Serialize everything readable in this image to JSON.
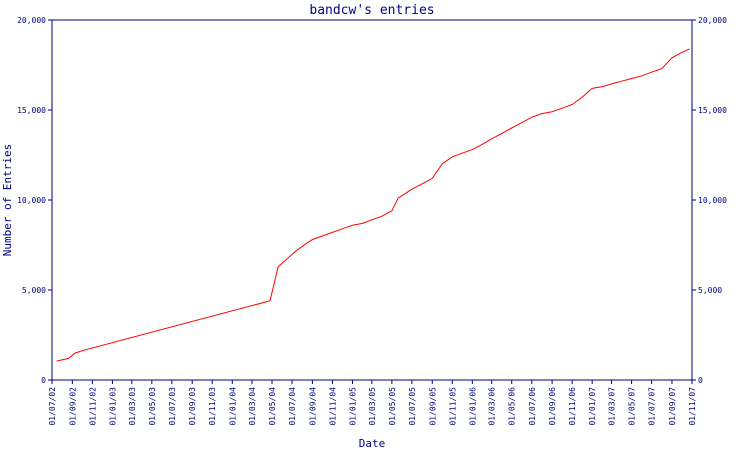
{
  "chart_data": {
    "type": "line",
    "title": "bandcw's entries",
    "xlabel": "Date",
    "ylabel": "Number of Entries",
    "ylim": [
      0,
      20000
    ],
    "yticks": [
      0,
      5000,
      10000,
      15000,
      20000
    ],
    "ytick_labels": [
      "0",
      "5,000",
      "10,000",
      "15,000",
      "20,000"
    ],
    "xlim": [
      "2002-07-01",
      "2007-11-01"
    ],
    "xticks": [
      "2002-07-01",
      "2002-09-01",
      "2002-11-01",
      "2003-01-01",
      "2003-03-01",
      "2003-05-01",
      "2003-07-01",
      "2003-09-01",
      "2003-11-01",
      "2004-01-01",
      "2004-03-01",
      "2004-05-01",
      "2004-07-01",
      "2004-09-01",
      "2004-11-01",
      "2005-01-01",
      "2005-03-01",
      "2005-05-01",
      "2005-07-01",
      "2005-09-01",
      "2005-11-01",
      "2006-01-01",
      "2006-03-01",
      "2006-05-01",
      "2006-07-01",
      "2006-09-01",
      "2006-11-01",
      "2007-01-01",
      "2007-03-01",
      "2007-05-01",
      "2007-07-01",
      "2007-09-01",
      "2007-11-01"
    ],
    "xtick_labels": [
      "01/07/02",
      "01/09/02",
      "01/11/02",
      "01/01/03",
      "01/03/03",
      "01/05/03",
      "01/07/03",
      "01/09/03",
      "01/11/03",
      "01/01/04",
      "01/03/04",
      "01/05/04",
      "01/07/04",
      "01/09/04",
      "01/11/04",
      "01/01/05",
      "01/03/05",
      "01/05/05",
      "01/07/05",
      "01/09/05",
      "01/11/05",
      "01/01/06",
      "01/03/06",
      "01/05/06",
      "01/07/06",
      "01/09/06",
      "01/11/06",
      "01/01/07",
      "01/03/07",
      "01/05/07",
      "01/07/07",
      "01/09/07",
      "01/11/07"
    ],
    "series": [
      {
        "color": "#ff0000",
        "x": [
          "2002-07-15",
          "2002-08-20",
          "2002-09-10",
          "2002-10-05",
          "2004-04-25",
          "2004-05-20",
          "2004-06-20",
          "2004-07-15",
          "2004-08-15",
          "2004-09-01",
          "2004-10-01",
          "2004-11-01",
          "2004-12-01",
          "2005-01-01",
          "2005-02-01",
          "2005-03-01",
          "2005-04-01",
          "2005-05-01",
          "2005-05-20",
          "2005-07-01",
          "2005-08-01",
          "2005-09-01",
          "2005-10-01",
          "2005-11-01",
          "2005-12-01",
          "2006-01-01",
          "2006-02-01",
          "2006-03-01",
          "2006-04-01",
          "2006-05-01",
          "2006-06-01",
          "2006-07-01",
          "2006-08-01",
          "2006-09-01",
          "2006-10-01",
          "2006-11-01",
          "2006-12-01",
          "2007-01-01",
          "2007-02-01",
          "2007-03-01",
          "2007-04-01",
          "2007-05-01",
          "2007-06-01",
          "2007-07-01",
          "2007-08-01",
          "2007-09-01",
          "2007-10-01",
          "2007-10-25"
        ],
        "y": [
          1050,
          1200,
          1500,
          1650,
          4400,
          6300,
          6800,
          7200,
          7600,
          7800,
          8000,
          8200,
          8400,
          8600,
          8700,
          8900,
          9100,
          9400,
          10100,
          10600,
          10900,
          11200,
          12000,
          12400,
          12600,
          12800,
          13100,
          13400,
          13700,
          14000,
          14300,
          14600,
          14800,
          14900,
          15100,
          15300,
          15700,
          16200,
          16300,
          16450,
          16600,
          16750,
          16900,
          17100,
          17300,
          17900,
          18200,
          18400
        ]
      }
    ]
  }
}
